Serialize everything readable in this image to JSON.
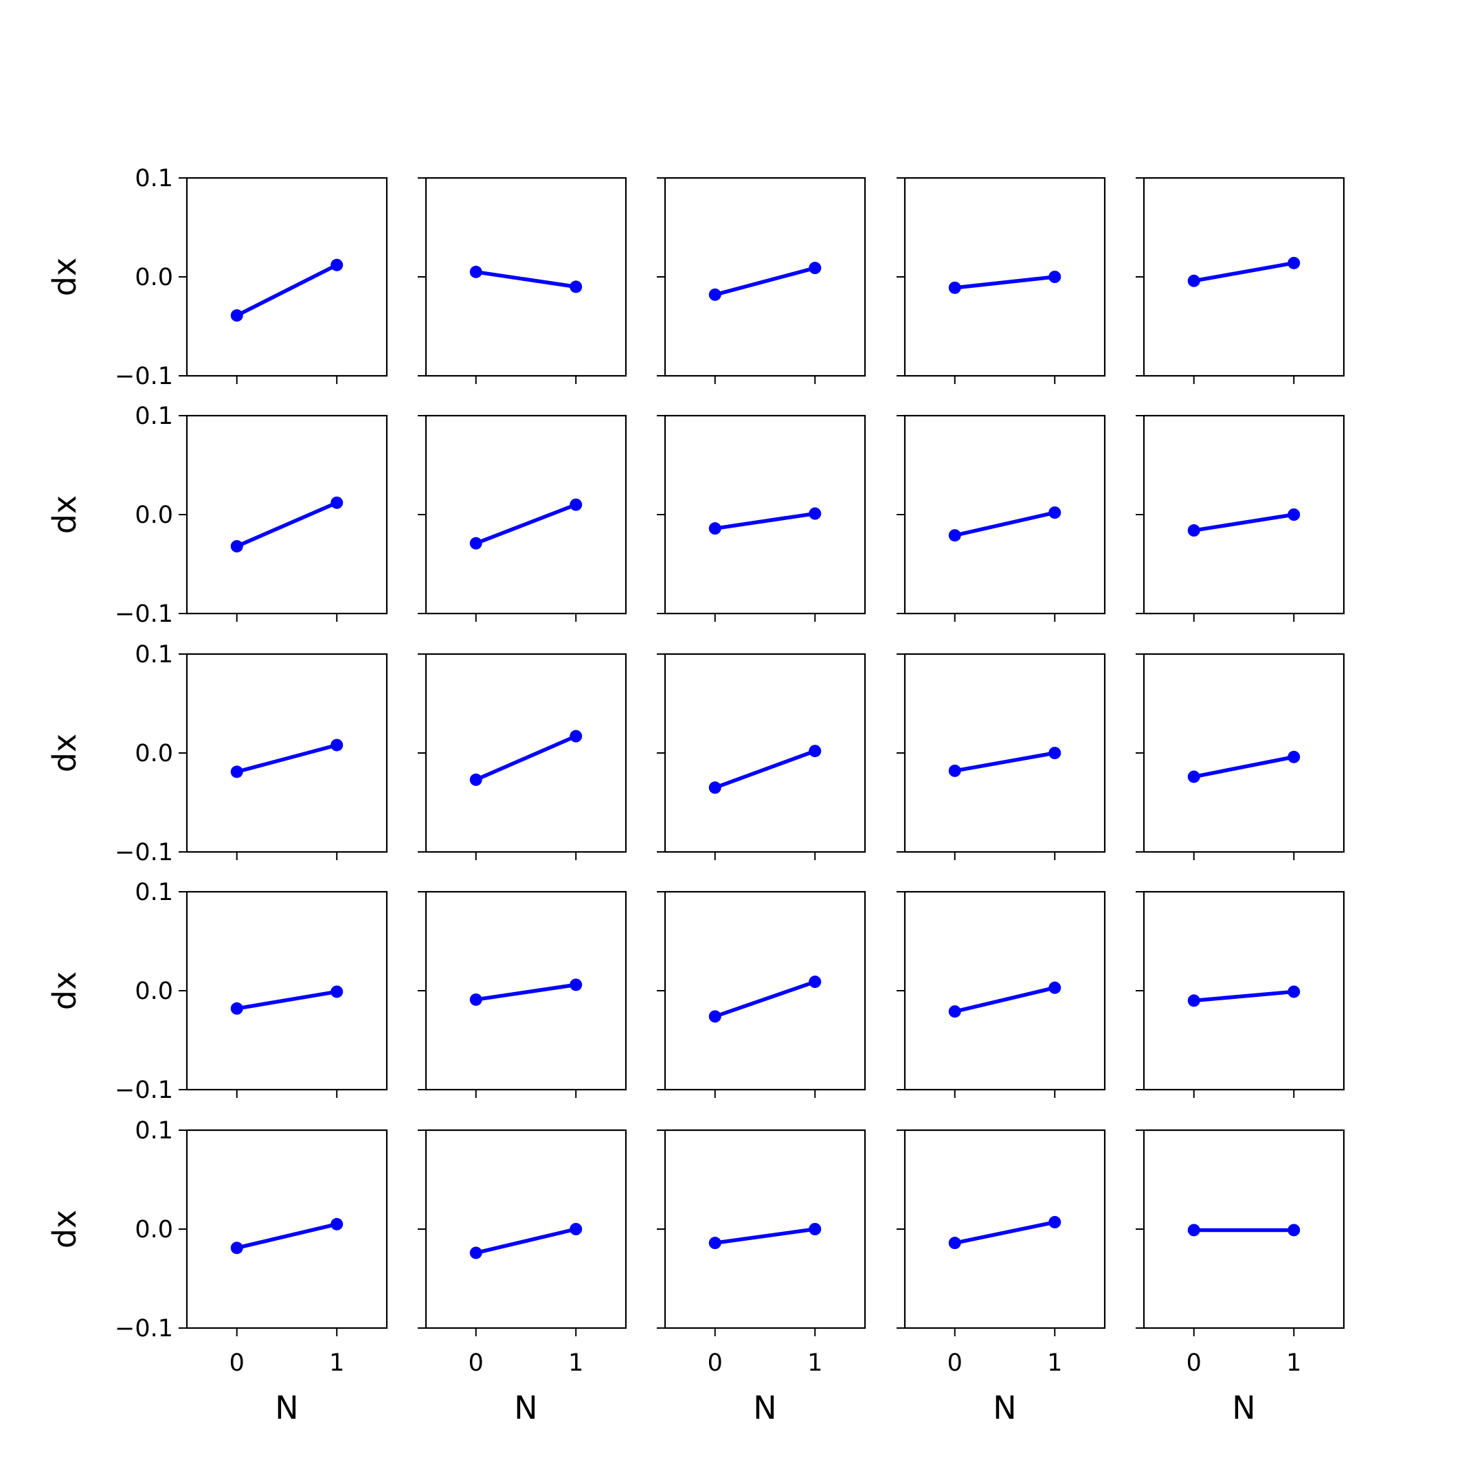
{
  "chart_data": {
    "type": "line",
    "layout": "5x5 grid of subplots",
    "series_color": "#0000ff",
    "marker": "circle",
    "xlabel": "N",
    "ylabel": "dx",
    "x": [
      0,
      1
    ],
    "xticks": [
      "0",
      "1"
    ],
    "xlim": [
      -0.5,
      1.5
    ],
    "yticks": [
      "0.1",
      "0.0",
      "−0.1"
    ],
    "ylim": [
      -0.1,
      0.1
    ],
    "grid": false,
    "panels": [
      {
        "row": 1,
        "col": 1,
        "values": [
          -0.039,
          0.012
        ]
      },
      {
        "row": 1,
        "col": 2,
        "values": [
          0.005,
          -0.01
        ]
      },
      {
        "row": 1,
        "col": 3,
        "values": [
          -0.018,
          0.009
        ]
      },
      {
        "row": 1,
        "col": 4,
        "values": [
          -0.011,
          0.0
        ]
      },
      {
        "row": 1,
        "col": 5,
        "values": [
          -0.004,
          0.014
        ]
      },
      {
        "row": 2,
        "col": 1,
        "values": [
          -0.032,
          0.012
        ]
      },
      {
        "row": 2,
        "col": 2,
        "values": [
          -0.029,
          0.01
        ]
      },
      {
        "row": 2,
        "col": 3,
        "values": [
          -0.014,
          0.001
        ]
      },
      {
        "row": 2,
        "col": 4,
        "values": [
          -0.021,
          0.002
        ]
      },
      {
        "row": 2,
        "col": 5,
        "values": [
          -0.016,
          0.0
        ]
      },
      {
        "row": 3,
        "col": 1,
        "values": [
          -0.019,
          0.008
        ]
      },
      {
        "row": 3,
        "col": 2,
        "values": [
          -0.027,
          0.017
        ]
      },
      {
        "row": 3,
        "col": 3,
        "values": [
          -0.035,
          0.002
        ]
      },
      {
        "row": 3,
        "col": 4,
        "values": [
          -0.018,
          0.0
        ]
      },
      {
        "row": 3,
        "col": 5,
        "values": [
          -0.024,
          -0.004
        ]
      },
      {
        "row": 4,
        "col": 1,
        "values": [
          -0.018,
          -0.001
        ]
      },
      {
        "row": 4,
        "col": 2,
        "values": [
          -0.009,
          0.006
        ]
      },
      {
        "row": 4,
        "col": 3,
        "values": [
          -0.026,
          0.009
        ]
      },
      {
        "row": 4,
        "col": 4,
        "values": [
          -0.021,
          0.003
        ]
      },
      {
        "row": 4,
        "col": 5,
        "values": [
          -0.01,
          -0.001
        ]
      },
      {
        "row": 5,
        "col": 1,
        "values": [
          -0.019,
          0.005
        ]
      },
      {
        "row": 5,
        "col": 2,
        "values": [
          -0.024,
          0.0
        ]
      },
      {
        "row": 5,
        "col": 3,
        "values": [
          -0.014,
          0.0
        ]
      },
      {
        "row": 5,
        "col": 4,
        "values": [
          -0.014,
          0.007
        ]
      },
      {
        "row": 5,
        "col": 5,
        "values": [
          -0.001,
          -0.001
        ]
      }
    ]
  }
}
